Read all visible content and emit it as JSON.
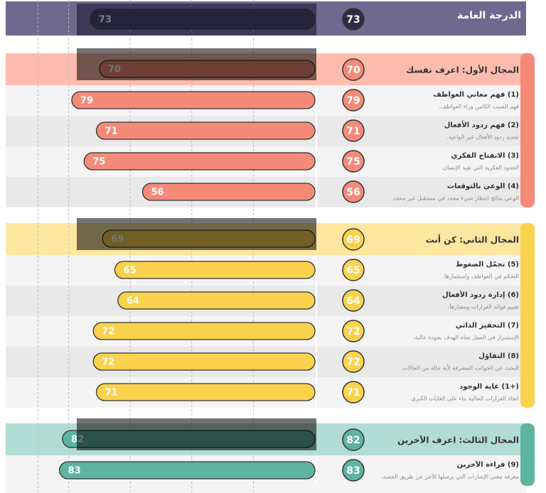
{
  "overall": {
    "title": "الدرجة العامة",
    "score": 73,
    "color": "#6f6990",
    "badge_color": "#2d2c45"
  },
  "scale": {
    "xlim": [
      0,
      100
    ],
    "xticks": [
      20,
      40,
      60,
      80,
      90
    ]
  },
  "sections": [
    {
      "title": "المجال الأول: اعرف نفسك",
      "score": 70,
      "color": "#f58a78",
      "header_color": "#fdbcae",
      "items": [
        {
          "title": "(1) فهم معاني العواطف",
          "desc": "فهم السبب الكامن وراء العواطف.",
          "score": 79
        },
        {
          "title": "(2) فهم ردود الأفعال",
          "desc": "تحديد ردود الأفعال غير الواعية.",
          "score": 71
        },
        {
          "title": "(3) الانفتاح الفكري",
          "desc": "الحدود الفكرية التي تقيد الإنسان.",
          "score": 75
        },
        {
          "title": "(4) الوعي بالتوقعات",
          "desc": "الوعي بنتائج انتظار شيء محدد في مستقبل غير محدد.",
          "score": 56
        }
      ]
    },
    {
      "title": "المجال الثاني: كن أنت",
      "score": 69,
      "color": "#fad24e",
      "header_color": "#fde7a0",
      "items": [
        {
          "title": "(5) تحمّل الضغوط",
          "desc": "التحكم في العواطف واستثمارها.",
          "score": 65
        },
        {
          "title": "(6) إدارة ردود الأفعال",
          "desc": "تقييم فوائد القرارات ومضارها.",
          "score": 64
        },
        {
          "title": "(7) التحفيز الذاتي",
          "desc": "الإستمرار في العمل تجاه الهدف بجودة عالية.",
          "score": 72
        },
        {
          "title": "(8) التفاؤل",
          "desc": "البحث عن الجوانب المشرقة لأية حالة من الحالات.",
          "score": 72
        },
        {
          "title": "(+1) غاية الوجود",
          "desc": "اتخاذ القرارات الحالية بناء على الغايات الكبرى.",
          "score": 71
        }
      ]
    },
    {
      "title": "المجال الثالث: اعرف الآخرين",
      "score": 82,
      "color": "#5db5a0",
      "header_color": "#b2ddd4",
      "items": [
        {
          "title": "(9) قراءة الآخرين",
          "desc": "معرفة معنى الإشارات التي يرسلها الآخر عن طريق الجسد.",
          "score": 83
        }
      ]
    }
  ]
}
